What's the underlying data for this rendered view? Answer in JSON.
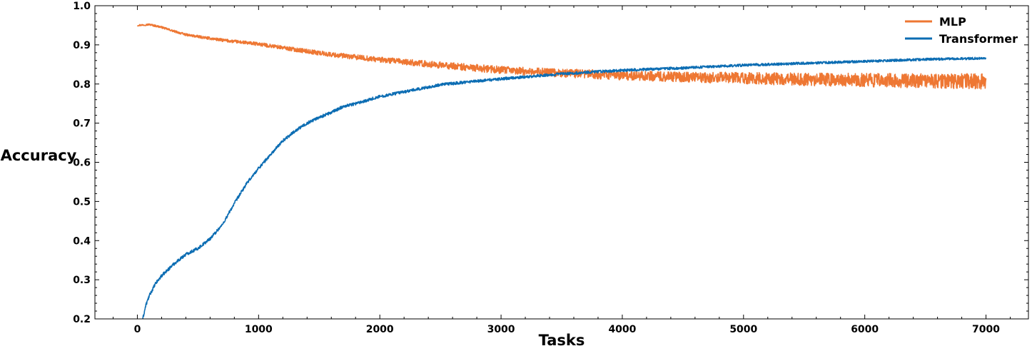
{
  "chart_data": {
    "type": "line",
    "xlabel": "Tasks",
    "ylabel": "Accuracy",
    "xlim": [
      -350,
      7350
    ],
    "ylim": [
      0.2,
      1.0
    ],
    "x_ticks": [
      0,
      1000,
      2000,
      3000,
      4000,
      5000,
      6000,
      7000
    ],
    "y_ticks": [
      0.2,
      0.3,
      0.4,
      0.5,
      0.6,
      0.7,
      0.8,
      0.9,
      1.0
    ],
    "x_tick_labels": [
      "0",
      "1000",
      "2000",
      "3000",
      "4000",
      "5000",
      "6000",
      "7000"
    ],
    "y_tick_labels": [
      "0.2",
      "0.3",
      "0.4",
      "0.5",
      "0.6",
      "0.7",
      "0.8",
      "0.9",
      "1.0"
    ],
    "grid": false,
    "legend_position": "top-right",
    "series": [
      {
        "name": "MLP",
        "color": "#ee7733",
        "noise": [
          0.002,
          0.02
        ],
        "x": [
          0,
          100,
          200,
          300,
          400,
          500,
          700,
          1000,
          1300,
          1600,
          2000,
          2500,
          3000,
          3500,
          4000,
          4500,
          5000,
          5500,
          6000,
          6500,
          7000
        ],
        "y": [
          0.95,
          0.952,
          0.945,
          0.935,
          0.926,
          0.921,
          0.912,
          0.902,
          0.888,
          0.875,
          0.862,
          0.848,
          0.836,
          0.828,
          0.822,
          0.818,
          0.815,
          0.812,
          0.81,
          0.808,
          0.807
        ]
      },
      {
        "name": "Transformer",
        "color": "#0c6db3",
        "noise": [
          0.004,
          0.003
        ],
        "x": [
          45,
          70,
          100,
          150,
          200,
          300,
          400,
          500,
          600,
          700,
          800,
          900,
          1000,
          1100,
          1200,
          1300,
          1400,
          1500,
          1600,
          1700,
          1800,
          2000,
          2250,
          2500,
          2750,
          3000,
          3500,
          4000,
          4500,
          5000,
          5500,
          6000,
          6500,
          7000
        ],
        "y": [
          0.2,
          0.235,
          0.26,
          0.29,
          0.31,
          0.34,
          0.365,
          0.38,
          0.405,
          0.44,
          0.495,
          0.545,
          0.585,
          0.62,
          0.655,
          0.68,
          0.7,
          0.715,
          0.727,
          0.743,
          0.75,
          0.768,
          0.783,
          0.798,
          0.806,
          0.813,
          0.826,
          0.835,
          0.841,
          0.848,
          0.853,
          0.858,
          0.863,
          0.866
        ]
      }
    ]
  }
}
